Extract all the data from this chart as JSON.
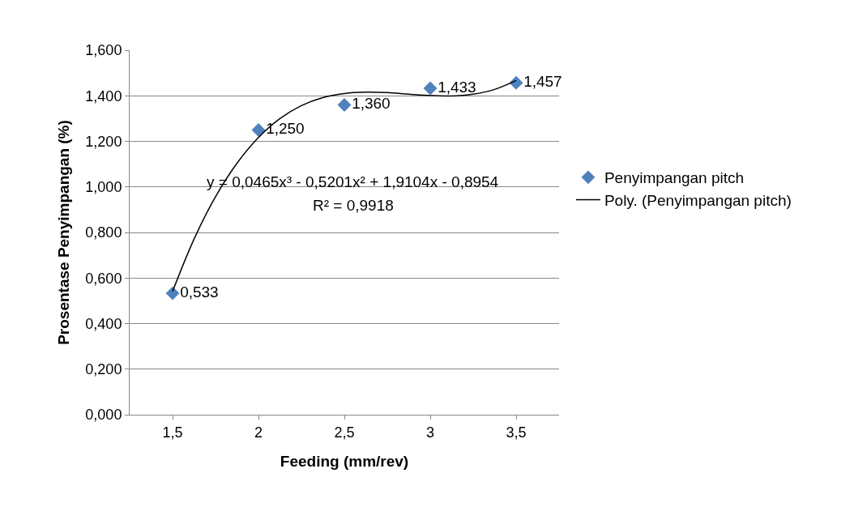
{
  "chart_data": {
    "type": "scatter",
    "xlabel": "Feeding (mm/rev)",
    "ylabel": "Prosentase Penyimpangan (%)",
    "x": [
      1.5,
      2,
      2.5,
      3,
      3.5
    ],
    "series": [
      {
        "name": "Penyimpangan pitch",
        "color": "#4f81bd",
        "marker": "diamond",
        "values": [
          0.533,
          1.25,
          1.36,
          1.433,
          1.457
        ],
        "value_labels": [
          "0,533",
          "1,250",
          "1,360",
          "1,433",
          "1,457"
        ]
      },
      {
        "name": "Poly. (Penyimpangan pitch)",
        "type": "line",
        "color": "#000000",
        "marker": "none",
        "x": [
          1.5,
          1.625,
          1.75,
          1.875,
          2,
          2.125,
          2.25,
          2.375,
          2.5,
          2.625,
          2.75,
          2.875,
          3,
          3.125,
          3.25,
          3.375,
          3.5
        ],
        "values": [
          0.541,
          0.771,
          0.957,
          1.104,
          1.217,
          1.3,
          1.357,
          1.392,
          1.41,
          1.416,
          1.414,
          1.407,
          1.401,
          1.399,
          1.407,
          1.428,
          1.467
        ]
      }
    ],
    "xlim": [
      1.25,
      3.75
    ],
    "xticks": [
      {
        "value": 1.5,
        "label": "1,5"
      },
      2,
      {
        "value": 2.5,
        "label": "2,5"
      },
      3,
      {
        "value": 3.5,
        "label": "3,5"
      }
    ],
    "ylim": [
      0,
      1.6
    ],
    "yticks": [
      {
        "value": 0,
        "label": "0,000"
      },
      {
        "value": 0.2,
        "label": "0,200"
      },
      {
        "value": 0.4,
        "label": "0,400"
      },
      {
        "value": 0.6,
        "label": "0,600"
      },
      {
        "value": 0.8,
        "label": "0,800"
      },
      {
        "value": 1,
        "label": "1,000"
      },
      {
        "value": 1.2,
        "label": "1,200"
      },
      {
        "value": 1.4,
        "label": "1,400"
      },
      {
        "value": 1.6,
        "label": "1,600"
      }
    ],
    "grid": "y",
    "legend": "right",
    "annotations": [
      "y = 0,0465x³ - 0,5201x² + 1,9104x - 0,8954",
      "R² = 0,9918"
    ]
  }
}
